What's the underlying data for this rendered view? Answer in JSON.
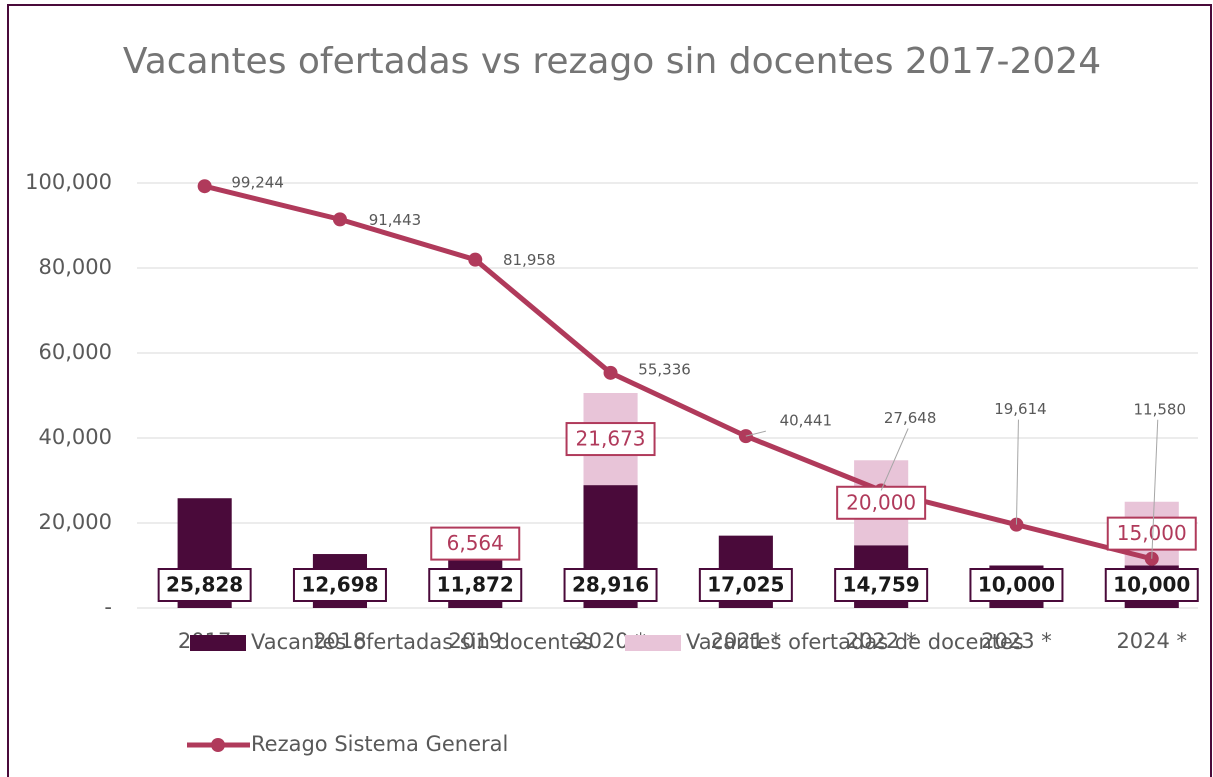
{
  "chart_data": {
    "type": "bar-line",
    "title": "Vacantes ofertadas vs rezago sin docentes 2017-2024",
    "categories": [
      "2017",
      "2018",
      "2019",
      "2020 *",
      "2021 *",
      "2022 *",
      "2023 *",
      "2024 *"
    ],
    "series": [
      {
        "name": "Vacantes ofertadas sin docentes",
        "type": "bar",
        "color": "#4a0a3a",
        "values": [
          25828,
          12698,
          11872,
          28916,
          17025,
          14759,
          10000,
          10000
        ],
        "value_labels": [
          "25,828",
          "12,698",
          "11,872",
          "28,916",
          "17,025",
          "14,759",
          "10,000",
          "10,000"
        ]
      },
      {
        "name": "Vacantes ofertadas de docentes",
        "type": "bar",
        "color": "#e8c4d8",
        "values": [
          null,
          null,
          6564,
          21673,
          null,
          20000,
          null,
          15000
        ],
        "value_labels": [
          null,
          null,
          "6,564",
          "21,673",
          null,
          "20,000",
          null,
          "15,000"
        ]
      },
      {
        "name": "Rezago Sistema General",
        "type": "line",
        "color": "#b03a5b",
        "values": [
          99244,
          91443,
          81958,
          55336,
          40441,
          27648,
          19614,
          11580
        ],
        "value_labels": [
          "99,244",
          "91,443",
          "81,958",
          "55,336",
          "40,441",
          "27,648",
          "19,614",
          "11,580"
        ]
      }
    ],
    "ylim": [
      0,
      100000
    ],
    "yticks": [
      {
        "value": 0,
        "label": "-"
      },
      {
        "value": 20000,
        "label": "20,000"
      },
      {
        "value": 40000,
        "label": "40,000"
      },
      {
        "value": 60000,
        "label": "60,000"
      },
      {
        "value": 80000,
        "label": "80,000"
      },
      {
        "value": 100000,
        "label": "100,000"
      }
    ],
    "grid": true,
    "stacked": true,
    "legend": "bottom"
  }
}
